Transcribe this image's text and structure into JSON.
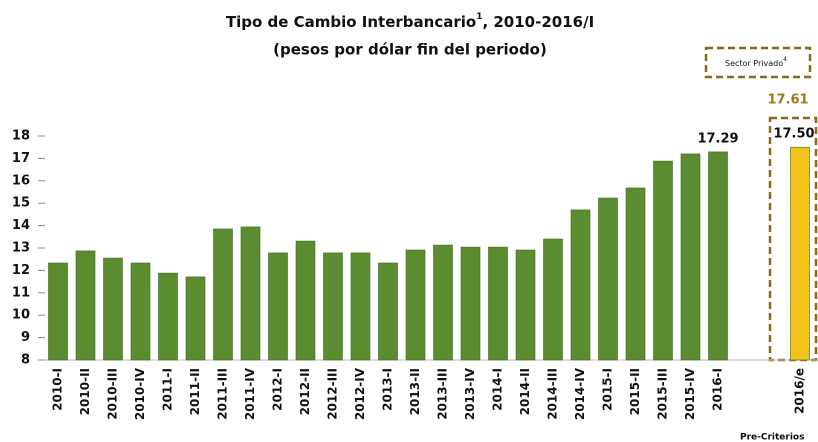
{
  "chart_data": {
    "type": "bar",
    "title": {
      "text": "Tipo de Cambio Interbancario",
      "sup": "1",
      "rest": ", 2010-2016/I"
    },
    "subtitle": "(pesos por dólar fin del periodo)",
    "categories": [
      "2010-I",
      "2010-II",
      "2010-III",
      "2010-IV",
      "2011-I",
      "2011-II",
      "2011-III",
      "2011-IV",
      "2012-I",
      "2012-II",
      "2012-III",
      "2012-IV",
      "2013-I",
      "2013-II",
      "2013-III",
      "2013-IV",
      "2014-I",
      "2014-II",
      "2014-III",
      "2014-IV",
      "2015-I",
      "2015-II",
      "2015-III",
      "2015-IV",
      "2016-I"
    ],
    "values": [
      12.33,
      12.87,
      12.55,
      12.33,
      11.88,
      11.71,
      13.85,
      13.94,
      12.78,
      13.31,
      12.78,
      12.78,
      12.33,
      12.91,
      13.13,
      13.04,
      13.04,
      12.91,
      13.4,
      14.7,
      15.23,
      15.68,
      16.88,
      17.2,
      17.29
    ],
    "value_labels": [
      null,
      null,
      null,
      null,
      null,
      null,
      null,
      null,
      null,
      null,
      null,
      null,
      null,
      null,
      null,
      null,
      null,
      null,
      null,
      null,
      null,
      null,
      null,
      null,
      "17.29"
    ],
    "color": "#5b8c2f",
    "estimate": {
      "category": "2016/e",
      "value": 17.5,
      "value_label": "17.50",
      "color": "#f2c318"
    },
    "sector_privado": {
      "label": "Sector Privado",
      "sup": "4",
      "value": 17.61,
      "color": "#a07a18"
    },
    "ylim": [
      8,
      18
    ],
    "yticks": [
      8,
      9,
      10,
      11,
      12,
      13,
      14,
      15,
      16,
      17,
      18
    ],
    "footnote": "Pre-Criterios"
  }
}
